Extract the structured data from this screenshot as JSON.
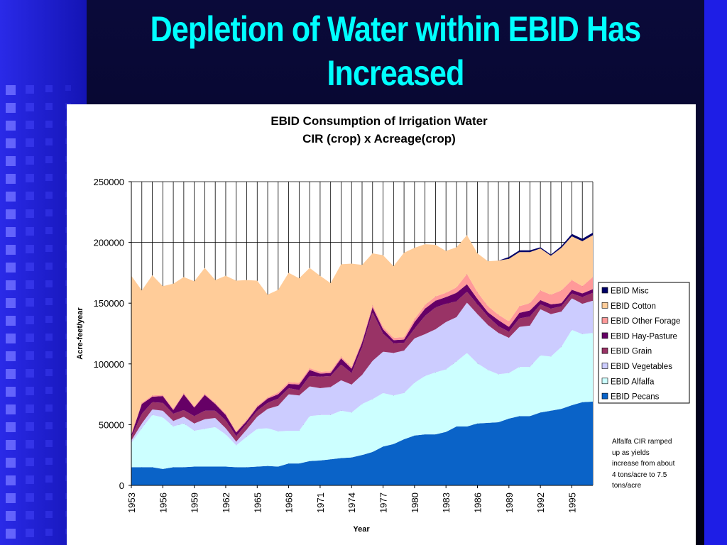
{
  "slide": {
    "title": "Depletion of Water within EBID Has Increased"
  },
  "colors": {
    "background_dark": "#0a0a28",
    "left_panel": "#1e1ee6",
    "right_bar": "#1e1ee6",
    "title_text": "#00ffff"
  },
  "chart_data": {
    "type": "area",
    "stacked": true,
    "title": "EBID Consumption of Irrigation Water",
    "subtitle": "CIR (crop) x Acreage(crop)",
    "xlabel": "Year",
    "ylabel": "Acre-feet/year",
    "ylim": [
      0,
      250000
    ],
    "yticks": [
      0,
      50000,
      100000,
      150000,
      200000,
      250000
    ],
    "ytick_labels": [
      "0",
      "50000",
      "100000",
      "150000",
      "200000",
      "250000"
    ],
    "xtick_labels": [
      "1953",
      "1956",
      "1959",
      "1962",
      "1965",
      "1968",
      "1971",
      "1974",
      "1977",
      "1980",
      "1983",
      "1986",
      "1989",
      "1992",
      "1995"
    ],
    "grid": "vertical lines at each year, horizontal lines at major ticks",
    "legend_position": "right",
    "x": [
      1953,
      1954,
      1955,
      1956,
      1957,
      1958,
      1959,
      1960,
      1961,
      1962,
      1963,
      1964,
      1965,
      1966,
      1967,
      1968,
      1969,
      1970,
      1971,
      1972,
      1973,
      1974,
      1975,
      1976,
      1977,
      1978,
      1979,
      1980,
      1981,
      1982,
      1983,
      1984,
      1985,
      1986,
      1987,
      1988,
      1989,
      1990,
      1991,
      1992,
      1993,
      1994,
      1995,
      1996,
      1997
    ],
    "series": [
      {
        "name": "EBID Pecans",
        "color": "#0a63c8",
        "values": [
          15000,
          15000,
          15000,
          13500,
          15000,
          15000,
          15500,
          15500,
          15500,
          15500,
          15000,
          15000,
          15500,
          16000,
          15500,
          18000,
          18000,
          20000,
          20500,
          21500,
          22500,
          23000,
          25000,
          27500,
          32000,
          34000,
          38000,
          41000,
          42000,
          42000,
          44000,
          48500,
          48500,
          51000,
          51500,
          52000,
          55000,
          57000,
          57000,
          60000,
          61500,
          63000,
          66000,
          68500,
          69000
        ]
      },
      {
        "name": "EBID Alfalfa",
        "color": "#ccffff",
        "values": [
          20000,
          32000,
          43000,
          42500,
          33500,
          36000,
          29500,
          31000,
          32500,
          26500,
          18000,
          25000,
          31000,
          31000,
          29000,
          27000,
          27000,
          37000,
          37500,
          36500,
          39000,
          37000,
          42000,
          43500,
          44000,
          40000,
          38000,
          43500,
          48000,
          51000,
          51500,
          53500,
          60500,
          49500,
          43500,
          39500,
          37500,
          40500,
          40500,
          47000,
          44500,
          51000,
          62000,
          56000,
          56500
        ]
      },
      {
        "name": "EBID Vegetables",
        "color": "#ccccff",
        "values": [
          2000,
          4000,
          4500,
          5500,
          4500,
          5500,
          6000,
          8000,
          7500,
          5000,
          3000,
          6000,
          10000,
          16000,
          21000,
          30000,
          29000,
          24500,
          22000,
          23000,
          25000,
          23000,
          24000,
          31500,
          34000,
          35000,
          35000,
          36500,
          34500,
          35500,
          39000,
          36500,
          41500,
          40500,
          37000,
          34000,
          29000,
          33000,
          34000,
          38000,
          35000,
          29000,
          26000,
          25000,
          26500
        ]
      },
      {
        "name": "EBID Grain",
        "color": "#993366",
        "values": [
          3000,
          8000,
          6000,
          6500,
          6000,
          5500,
          6000,
          7000,
          6000,
          6500,
          4500,
          5000,
          5000,
          5000,
          6000,
          5000,
          4500,
          8500,
          9500,
          9000,
          13000,
          9500,
          23000,
          40000,
          15000,
          8000,
          6500,
          8000,
          15000,
          18000,
          15000,
          13000,
          9000,
          8000,
          7000,
          5500,
          5000,
          7000,
          7500,
          4000,
          4500,
          4500,
          4000,
          5500,
          6500
        ]
      },
      {
        "name": "EBID Hay-Pasture",
        "color": "#660066",
        "values": [
          1500,
          8000,
          4500,
          5500,
          3000,
          13000,
          7000,
          13000,
          5500,
          4500,
          3000,
          2000,
          3000,
          3500,
          3500,
          3500,
          4500,
          5000,
          2500,
          2500,
          5000,
          3500,
          3500,
          4000,
          3500,
          2500,
          2500,
          5500,
          6000,
          5500,
          5500,
          7000,
          6000,
          4500,
          3500,
          5000,
          4000,
          4500,
          5000,
          3500,
          3500,
          2500,
          3000,
          3000,
          3000
        ]
      },
      {
        "name": "EBID Other Forage",
        "color": "#ff9999",
        "values": [
          1000,
          1000,
          1000,
          1000,
          1000,
          1000,
          1000,
          1000,
          1000,
          1000,
          1000,
          1000,
          1000,
          1000,
          1500,
          1500,
          1500,
          1500,
          1500,
          1500,
          1500,
          1500,
          1500,
          2000,
          2000,
          2000,
          2000,
          2500,
          3000,
          3500,
          3500,
          4500,
          8500,
          5500,
          5000,
          4500,
          4500,
          5500,
          6000,
          8000,
          8000,
          10500,
          8000,
          6000,
          10000
        ]
      },
      {
        "name": "EBID Cotton",
        "color": "#ffcc99",
        "values": [
          130000,
          92500,
          99000,
          89500,
          103000,
          95500,
          103000,
          103500,
          101000,
          113500,
          124000,
          115000,
          103000,
          84500,
          84500,
          90000,
          86000,
          82500,
          79000,
          72500,
          76000,
          85000,
          62500,
          42500,
          59000,
          59000,
          69500,
          58500,
          50000,
          42500,
          34500,
          33000,
          32000,
          32000,
          37000,
          44500,
          51500,
          44500,
          42000,
          34500,
          32000,
          35000,
          36000,
          37000,
          34500
        ]
      },
      {
        "name": "EBID Misc",
        "color": "#000066",
        "values": [
          0,
          0,
          0,
          0,
          0,
          0,
          0,
          0,
          0,
          0,
          0,
          0,
          0,
          0,
          0,
          0,
          0,
          0,
          0,
          0,
          0,
          0,
          0,
          0,
          0,
          0,
          0,
          0,
          0,
          0,
          0,
          0,
          0,
          0,
          0,
          0,
          1500,
          1500,
          1500,
          1000,
          1000,
          1500,
          2000,
          2000,
          2000
        ]
      }
    ],
    "annotation": "Alfalfa CIR ramped up as yields increase from about 4 tons/acre to 7.5 tons/acre"
  }
}
